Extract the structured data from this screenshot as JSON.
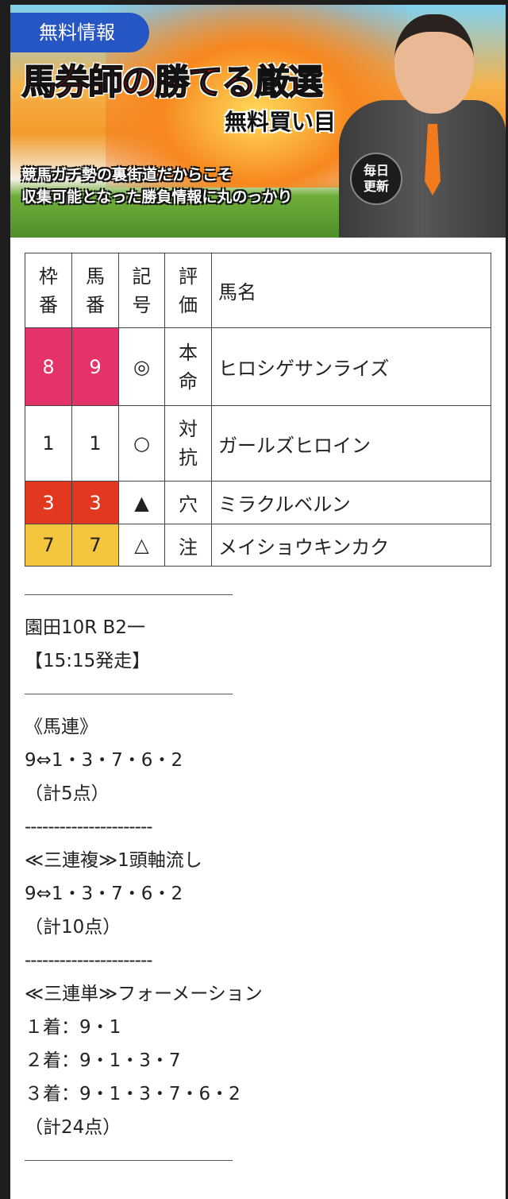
{
  "banner": {
    "badge": "無料情報",
    "title": "馬券師の勝てる厳選",
    "title_sub": "無料買い目",
    "tagline": [
      "競馬ガチ勢の裏街道だからこそ",
      "収集可能となった勝負情報に丸のっかり"
    ],
    "daily_badge": [
      "毎日",
      "更新"
    ]
  },
  "table": {
    "headers": [
      [
        "枠",
        "番"
      ],
      [
        "馬",
        "番"
      ],
      [
        "記",
        "号"
      ],
      [
        "評",
        "価"
      ],
      "馬名"
    ],
    "rows": [
      {
        "waku": "8",
        "uma": "9",
        "mark": "◎",
        "eval": [
          "本",
          "命"
        ],
        "name": "ヒロシゲサンライズ",
        "color": "#e43368"
      },
      {
        "waku": "1",
        "uma": "1",
        "mark": "○",
        "eval": [
          "対",
          "抗"
        ],
        "name": "ガールズヒロイン",
        "color": "#ffffff"
      },
      {
        "waku": "3",
        "uma": "3",
        "mark": "▲",
        "eval": [
          "穴"
        ],
        "name": "ミラクルベルン",
        "color": "#e2381f"
      },
      {
        "waku": "7",
        "uma": "7",
        "mark": "△",
        "eval": [
          "注"
        ],
        "name": "メイショウキンカク",
        "color": "#f4c63d"
      }
    ]
  },
  "race": {
    "name": "園田10R B2一",
    "start": "【15:15発走】"
  },
  "bets": [
    {
      "type": "《馬連》",
      "lines": [
        "9⇔1・3・7・6・2"
      ],
      "total": "（計5点）"
    },
    {
      "type": "≪三連複≫1頭軸流し",
      "lines": [
        "9⇔1・3・7・6・2"
      ],
      "total": "（計10点）"
    },
    {
      "type": "≪三連単≫フォーメーション",
      "lines": [
        "１着：9・1",
        "２着：9・1・3・7",
        "３着：9・1・3・7・6・2"
      ],
      "total": "（計24点）"
    }
  ],
  "separator": "----------------------"
}
